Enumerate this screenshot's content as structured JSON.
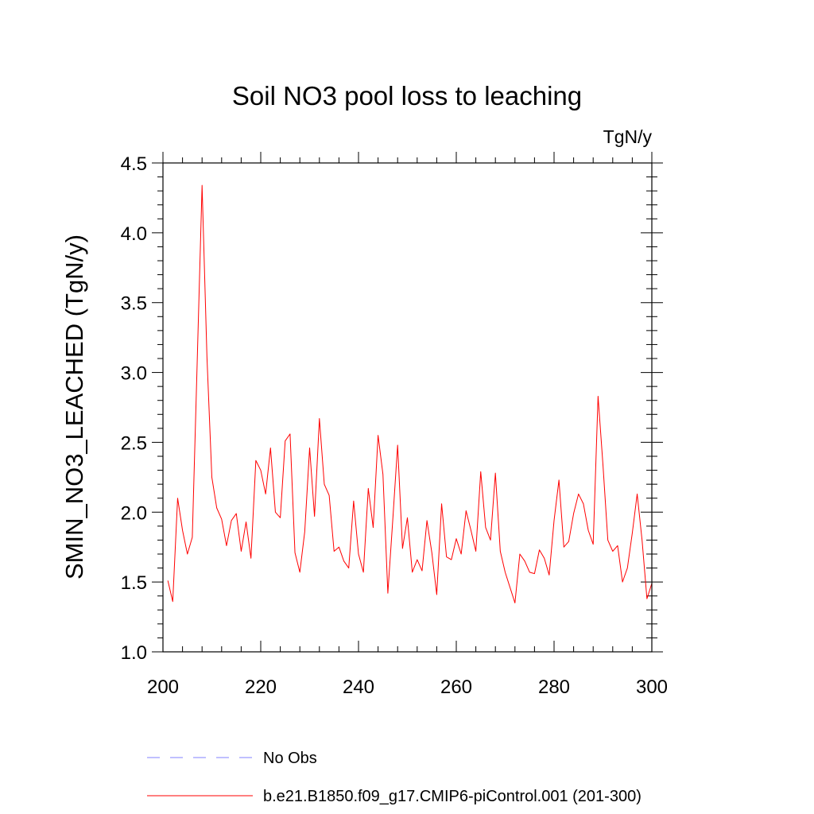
{
  "chart_data": {
    "type": "line",
    "title": "Soil NO3 pool loss to leaching",
    "units_label": "TgN/y",
    "xlabel": "",
    "ylabel": "SMIN_NO3_LEACHED  (TgN/y)",
    "xlim": [
      200,
      300
    ],
    "ylim": [
      1.0,
      4.5
    ],
    "x_ticks": [
      200,
      220,
      240,
      260,
      280,
      300
    ],
    "x_tick_labels": [
      "200",
      "220",
      "240",
      "260",
      "280",
      "300"
    ],
    "y_ticks": [
      1.0,
      1.5,
      2.0,
      2.5,
      3.0,
      3.5,
      4.0,
      4.5
    ],
    "y_tick_labels": [
      "1.0",
      "1.5",
      "2.0",
      "2.5",
      "3.0",
      "3.5",
      "4.0",
      "4.5"
    ],
    "grid": false,
    "legend_position": "bottom",
    "legend": [
      {
        "label": "No Obs",
        "color": "#8080ff",
        "style": "dashed"
      },
      {
        "label": "b.e21.B1850.f09_g17.CMIP6-piControl.001 (201-300)",
        "color": "#ff0000",
        "style": "solid"
      }
    ],
    "series": [
      {
        "name": "b.e21.B1850.f09_g17.CMIP6-piControl.001 (201-300)",
        "color": "#ff0000",
        "x": [
          201,
          202,
          203,
          204,
          205,
          206,
          207,
          208,
          209,
          210,
          211,
          212,
          213,
          214,
          215,
          216,
          217,
          218,
          219,
          220,
          221,
          222,
          223,
          224,
          225,
          226,
          227,
          228,
          229,
          230,
          231,
          232,
          233,
          234,
          235,
          236,
          237,
          238,
          239,
          240,
          241,
          242,
          243,
          244,
          245,
          246,
          247,
          248,
          249,
          250,
          251,
          252,
          253,
          254,
          255,
          256,
          257,
          258,
          259,
          260,
          261,
          262,
          263,
          264,
          265,
          266,
          267,
          268,
          269,
          270,
          271,
          272,
          273,
          274,
          275,
          276,
          277,
          278,
          279,
          280,
          281,
          282,
          283,
          284,
          285,
          286,
          287,
          288,
          289,
          290,
          291,
          292,
          293,
          294,
          295,
          296,
          297,
          298,
          299,
          300
        ],
        "values": [
          1.51,
          1.36,
          2.1,
          1.87,
          1.7,
          1.82,
          3.07,
          4.34,
          3.11,
          2.25,
          2.03,
          1.95,
          1.76,
          1.94,
          1.99,
          1.72,
          1.93,
          1.67,
          2.37,
          2.3,
          2.13,
          2.46,
          2.0,
          1.96,
          2.51,
          2.56,
          1.71,
          1.57,
          1.86,
          2.46,
          1.97,
          2.67,
          2.2,
          2.12,
          1.72,
          1.75,
          1.65,
          1.6,
          2.08,
          1.7,
          1.57,
          2.17,
          1.89,
          2.55,
          2.27,
          1.42,
          1.94,
          2.48,
          1.74,
          1.96,
          1.57,
          1.66,
          1.58,
          1.94,
          1.71,
          1.41,
          2.06,
          1.68,
          1.66,
          1.81,
          1.7,
          2.01,
          1.87,
          1.72,
          2.29,
          1.89,
          1.8,
          2.28,
          1.72,
          1.57,
          1.46,
          1.35,
          1.7,
          1.65,
          1.57,
          1.56,
          1.73,
          1.67,
          1.55,
          1.94,
          2.23,
          1.75,
          1.79,
          1.99,
          2.13,
          2.06,
          1.87,
          1.77,
          2.83,
          2.34,
          1.8,
          1.72,
          1.76,
          1.5,
          1.6,
          1.85,
          2.13,
          1.8,
          1.38,
          1.49
        ]
      }
    ]
  }
}
